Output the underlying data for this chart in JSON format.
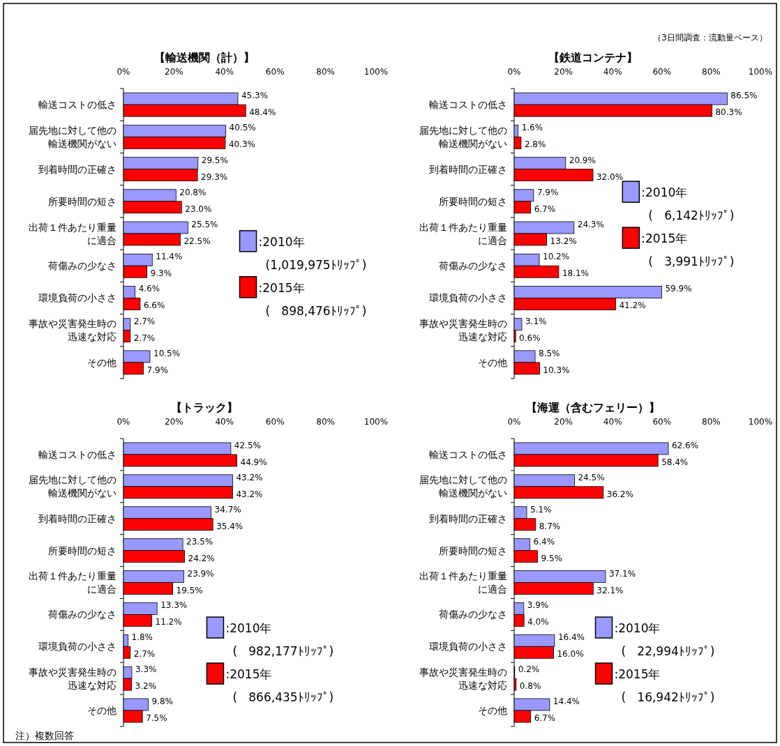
{
  "chart_data": [
    {
      "type": "bar",
      "orientation": "horizontal",
      "title": "【輸送機関（計）】",
      "legend": "right",
      "grid": false,
      "categories": [
        "輸送コストの低さ",
        "届先地に対して他の輸送機関がない",
        "到着時間の正確さ",
        "所要時間の短さ",
        "出荷１件あたり重量に適合",
        "荷傷みの少なさ",
        "環境負荷の小ささ",
        "事故や災害発生時の迅速な対応",
        "その他"
      ],
      "xlim": [
        0,
        100
      ],
      "xticks": [
        {
          "value": 0,
          "label": "0%"
        },
        {
          "value": 20,
          "label": "20%"
        },
        {
          "value": 40,
          "label": "40%"
        },
        {
          "value": 60,
          "label": "60%"
        },
        {
          "value": 80,
          "label": "80%"
        },
        {
          "value": 100,
          "label": "100%"
        }
      ],
      "series": [
        {
          "name": ":2010年(1,019,975ﾄﾘｯﾌﾟ)",
          "color": "#9999ff",
          "values": [
            45.3,
            40.5,
            29.5,
            20.8,
            25.5,
            11.4,
            4.6,
            2.7,
            10.5
          ],
          "value_labels": [
            "45.3%",
            "40.5%",
            "29.5%",
            "20.8%",
            "25.5%",
            "11.4%",
            "4.6%",
            "2.7%",
            "10.5%"
          ]
        },
        {
          "name": ":2015年(   898,476ﾄﾘｯﾌﾟ)",
          "color": "#ff0000",
          "values": [
            48.4,
            40.3,
            29.3,
            23.0,
            22.5,
            9.3,
            6.6,
            2.7,
            7.9
          ],
          "value_labels": [
            "48.4%",
            "40.3%",
            "29.3%",
            "23.0%",
            "22.5%",
            "9.3%",
            "6.6%",
            "2.7%",
            "7.9%"
          ]
        }
      ]
    },
    {
      "type": "bar",
      "orientation": "horizontal",
      "title": "【鉄道コンテナ】",
      "legend": "top right",
      "grid": false,
      "annotations": [
        "（3日間調査：流動量ベース）"
      ],
      "categories": [
        "輸送コストの低さ",
        "届先地に対して他の輸送機関がない",
        "到着時間の正確さ",
        "所要時間の短さ",
        "出荷１件あたり重量に適合",
        "荷傷みの少なさ",
        "環境負荷の小ささ",
        "事故や災害発生時の迅速な対応",
        "その他"
      ],
      "xlim": [
        0,
        100
      ],
      "xticks": [
        {
          "value": 0,
          "label": "0%"
        },
        {
          "value": 20,
          "label": "20%"
        },
        {
          "value": 40,
          "label": "40%"
        },
        {
          "value": 60,
          "label": "60%"
        },
        {
          "value": 80,
          "label": "80%"
        },
        {
          "value": 100,
          "label": "100%"
        }
      ],
      "series": [
        {
          "name": ":2010年(   6,142ﾄﾘｯﾌﾟ)",
          "color": "#9999ff",
          "values": [
            86.5,
            1.6,
            20.9,
            7.9,
            24.3,
            10.2,
            59.9,
            3.1,
            8.5
          ],
          "value_labels": [
            "86.5%",
            "1.6%",
            "20.9%",
            "7.9%",
            "24.3%",
            "10.2%",
            "59.9%",
            "3.1%",
            "8.5%"
          ]
        },
        {
          "name": ":2015年(   3,991ﾄﾘｯﾌﾟ)",
          "color": "#ff0000",
          "values": [
            80.3,
            2.8,
            32.0,
            6.7,
            13.2,
            18.1,
            41.2,
            0.6,
            10.3
          ],
          "value_labels": [
            "80.3%",
            "2.8%",
            "32.0%",
            "6.7%",
            "13.2%",
            "18.1%",
            "41.2%",
            "0.6%",
            "10.3%"
          ]
        }
      ]
    },
    {
      "type": "bar",
      "orientation": "horizontal",
      "title": "【トラック】",
      "legend": "bottom right",
      "grid": false,
      "annotations": [
        "注）複数回答"
      ],
      "categories": [
        "輸送コストの低さ",
        "届先地に対して他の輸送機関がない",
        "到着時間の正確さ",
        "所要時間の短さ",
        "出荷１件あたり重量に適合",
        "荷傷みの少なさ",
        "環境負荷の小ささ",
        "事故や災害発生時の迅速な対応",
        "その他"
      ],
      "xlim": [
        0,
        100
      ],
      "xticks": [
        {
          "value": 0,
          "label": "0%"
        },
        {
          "value": 20,
          "label": "20%"
        },
        {
          "value": 40,
          "label": "40%"
        },
        {
          "value": 60,
          "label": "60%"
        },
        {
          "value": 80,
          "label": "80%"
        },
        {
          "value": 100,
          "label": "100%"
        }
      ],
      "series": [
        {
          "name": ":2010年(   982,177ﾄﾘｯﾌﾟ)",
          "color": "#9999ff",
          "values": [
            42.5,
            43.2,
            34.7,
            23.5,
            23.9,
            13.3,
            1.8,
            3.3,
            9.8
          ],
          "value_labels": [
            "42.5%",
            "43.2%",
            "34.7%",
            "23.5%",
            "23.9%",
            "13.3%",
            "1.8%",
            "3.3%",
            "9.8%"
          ]
        },
        {
          "name": ":2015年(   866,435ﾄﾘｯﾌﾟ)",
          "color": "#ff0000",
          "values": [
            44.9,
            43.2,
            35.4,
            24.2,
            19.5,
            11.2,
            2.7,
            3.2,
            7.5
          ],
          "value_labels": [
            "44.9%",
            "43.2%",
            "35.4%",
            "24.2%",
            "19.5%",
            "11.2%",
            "2.7%",
            "3.2%",
            "7.5%"
          ]
        }
      ]
    },
    {
      "type": "bar",
      "orientation": "horizontal",
      "title": "【海運（含むフェリー）】",
      "legend": "bottom right",
      "grid": false,
      "categories": [
        "輸送コストの低さ",
        "届先地に対して他の輸送機関がない",
        "到着時間の正確さ",
        "所要時間の短さ",
        "出荷１件あたり重量に適合",
        "荷傷みの少なさ",
        "環境負荷の小ささ",
        "事故や災害発生時の迅速な対応",
        "その他"
      ],
      "xlim": [
        0,
        100
      ],
      "xticks": [
        {
          "value": 0,
          "label": "0%"
        },
        {
          "value": 20,
          "label": "20%"
        },
        {
          "value": 40,
          "label": "40%"
        },
        {
          "value": 60,
          "label": "60%"
        },
        {
          "value": 80,
          "label": "80%"
        },
        {
          "value": 100,
          "label": "100%"
        }
      ],
      "series": [
        {
          "name": ":2010年(   22,994ﾄﾘｯﾌﾟ)",
          "color": "#9999ff",
          "values": [
            62.6,
            24.5,
            5.1,
            6.4,
            37.1,
            3.9,
            16.4,
            0.2,
            14.4
          ],
          "value_labels": [
            "62.6%",
            "24.5%",
            "5.1%",
            "6.4%",
            "37.1%",
            "3.9%",
            "16.4%",
            "0.2%",
            "14.4%"
          ]
        },
        {
          "name": ":2015年(   16,942ﾄﾘｯﾌﾟ)",
          "color": "#ff0000",
          "values": [
            58.4,
            36.2,
            8.7,
            9.5,
            32.1,
            4.0,
            16.0,
            0.8,
            6.7
          ],
          "value_labels": [
            "58.4%",
            "36.2%",
            "8.7%",
            "9.5%",
            "32.1%",
            "4.0%",
            "16.0%",
            "0.8%",
            "6.7%"
          ]
        }
      ]
    }
  ]
}
